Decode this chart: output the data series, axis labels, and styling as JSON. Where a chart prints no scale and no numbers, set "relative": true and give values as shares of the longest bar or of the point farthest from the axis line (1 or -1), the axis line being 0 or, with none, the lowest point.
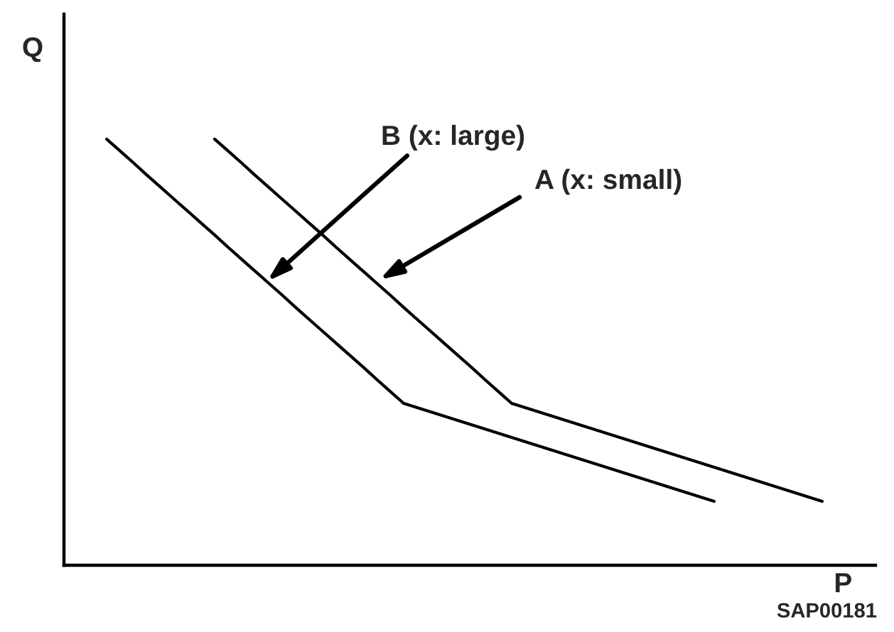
{
  "chart_data": {
    "type": "line",
    "xlabel": "P",
    "ylabel": "Q",
    "relative": true,
    "marker": "none",
    "line_style": "solid",
    "categories": [
      null,
      null,
      null,
      null,
      null,
      null,
      null,
      null,
      null,
      null,
      null,
      null,
      null,
      null,
      null,
      null,
      null,
      null,
      null,
      null,
      null,
      null,
      null,
      null,
      null,
      null,
      null,
      null,
      null,
      null,
      null,
      null,
      null,
      null,
      null,
      null,
      null,
      null,
      null,
      null,
      null,
      null,
      null,
      null,
      null,
      null,
      null,
      null,
      null,
      null,
      null,
      null,
      null,
      null
    ],
    "series": [
      {
        "color": "#000000",
        "values": [
          1.0,
          0.972,
          0.944,
          0.915,
          0.887,
          0.859,
          0.831,
          0.803,
          0.775,
          0.746,
          0.718,
          0.69,
          0.662,
          0.634,
          0.605,
          0.577,
          0.549,
          0.521,
          0.493,
          0.465,
          0.436,
          0.408,
          0.38,
          0.37,
          0.36,
          0.35,
          0.34,
          0.33,
          0.32,
          0.31,
          0.3,
          0.29,
          0.28,
          0.27,
          0.26,
          0.25,
          0.24,
          0.23,
          0.22,
          0.21,
          0.2,
          0.19,
          0.18,
          0.17,
          0.16,
          0.15,
          null,
          null,
          null,
          null,
          null,
          null,
          null,
          null
        ]
      },
      {
        "color": "#000000",
        "values": [
          null,
          null,
          null,
          null,
          null,
          null,
          null,
          null,
          1.0,
          0.972,
          0.944,
          0.915,
          0.887,
          0.859,
          0.831,
          0.803,
          0.775,
          0.746,
          0.718,
          0.69,
          0.662,
          0.634,
          0.605,
          0.577,
          0.549,
          0.521,
          0.493,
          0.465,
          0.436,
          0.408,
          0.38,
          0.37,
          0.36,
          0.35,
          0.34,
          0.33,
          0.32,
          0.31,
          0.3,
          0.29,
          0.28,
          0.27,
          0.26,
          0.25,
          0.24,
          0.23,
          0.22,
          0.21,
          0.2,
          0.19,
          0.18,
          0.17,
          0.16,
          0.15
        ]
      }
    ],
    "annotations": [
      "B (x: large)",
      "A (x: small)",
      "SAP00181"
    ]
  }
}
